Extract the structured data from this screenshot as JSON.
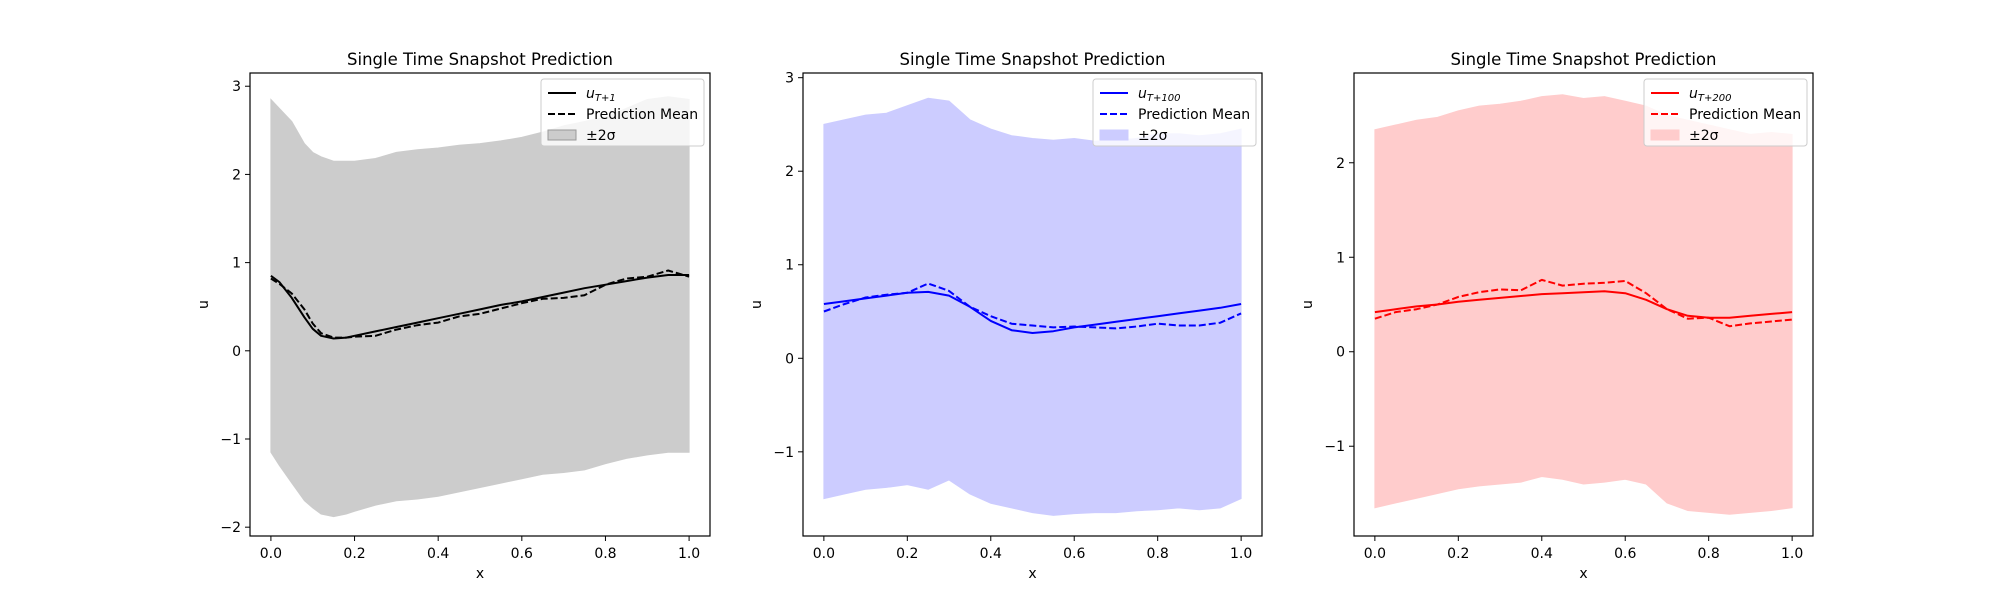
{
  "chart_data": [
    {
      "type": "line",
      "title": "Single Time Snapshot Prediction",
      "xlabel": "x",
      "ylabel": "u",
      "xlim": [
        -0.05,
        1.05
      ],
      "ylim": [
        -2.1,
        3.15
      ],
      "xticks": [
        0.0,
        0.2,
        0.4,
        0.6,
        0.8,
        1.0
      ],
      "xtick_labels": [
        "0.0",
        "0.2",
        "0.4",
        "0.6",
        "0.8",
        "1.0"
      ],
      "yticks": [
        -2,
        -1,
        0,
        1,
        2,
        3
      ],
      "ytick_labels": [
        "−2",
        "−1",
        "0",
        "1",
        "2",
        "3"
      ],
      "color": "#000000",
      "band_color": "#cccccc",
      "legend_position": "upper-right",
      "legend": [
        {
          "kind": "solid",
          "label_base": "u",
          "label_sub": "T+1"
        },
        {
          "kind": "dashed",
          "label": "Prediction Mean"
        },
        {
          "kind": "band",
          "label": "±2σ"
        }
      ],
      "x": [
        0.0,
        0.02,
        0.05,
        0.08,
        0.1,
        0.12,
        0.15,
        0.18,
        0.2,
        0.25,
        0.3,
        0.35,
        0.4,
        0.45,
        0.5,
        0.55,
        0.6,
        0.65,
        0.7,
        0.75,
        0.8,
        0.85,
        0.9,
        0.95,
        1.0
      ],
      "series": [
        {
          "name": "u_T+1",
          "style": "solid",
          "values": [
            0.85,
            0.78,
            0.6,
            0.38,
            0.25,
            0.17,
            0.14,
            0.15,
            0.17,
            0.22,
            0.27,
            0.32,
            0.37,
            0.42,
            0.47,
            0.52,
            0.56,
            0.61,
            0.66,
            0.71,
            0.75,
            0.79,
            0.83,
            0.86,
            0.86
          ]
        },
        {
          "name": "Prediction Mean",
          "style": "dashed",
          "values": [
            0.82,
            0.76,
            0.65,
            0.47,
            0.31,
            0.2,
            0.15,
            0.15,
            0.16,
            0.17,
            0.24,
            0.29,
            0.32,
            0.39,
            0.42,
            0.48,
            0.54,
            0.59,
            0.6,
            0.63,
            0.75,
            0.82,
            0.84,
            0.91,
            0.84
          ]
        }
      ],
      "band": {
        "upper": [
          2.85,
          2.75,
          2.6,
          2.35,
          2.25,
          2.2,
          2.15,
          2.15,
          2.15,
          2.18,
          2.25,
          2.28,
          2.3,
          2.33,
          2.35,
          2.38,
          2.42,
          2.48,
          2.55,
          2.6,
          2.65,
          2.75,
          2.85,
          2.88,
          2.85
        ],
        "lower": [
          -1.15,
          -1.3,
          -1.5,
          -1.7,
          -1.78,
          -1.85,
          -1.88,
          -1.85,
          -1.82,
          -1.75,
          -1.7,
          -1.68,
          -1.65,
          -1.6,
          -1.55,
          -1.5,
          -1.45,
          -1.4,
          -1.38,
          -1.35,
          -1.28,
          -1.22,
          -1.18,
          -1.15,
          -1.15
        ]
      }
    },
    {
      "type": "line",
      "title": "Single Time Snapshot Prediction",
      "xlabel": "x",
      "ylabel": "u",
      "xlim": [
        -0.05,
        1.05
      ],
      "ylim": [
        -1.9,
        3.05
      ],
      "xticks": [
        0.0,
        0.2,
        0.4,
        0.6,
        0.8,
        1.0
      ],
      "xtick_labels": [
        "0.0",
        "0.2",
        "0.4",
        "0.6",
        "0.8",
        "1.0"
      ],
      "yticks": [
        -1,
        0,
        1,
        2,
        3
      ],
      "ytick_labels": [
        "−1",
        "0",
        "1",
        "2",
        "3"
      ],
      "color": "#0000ff",
      "band_color": "#ccccff",
      "legend_position": "upper-right",
      "legend": [
        {
          "kind": "solid",
          "label_base": "u",
          "label_sub": "T+100"
        },
        {
          "kind": "dashed",
          "label": "Prediction Mean"
        },
        {
          "kind": "band",
          "label": "±2σ"
        }
      ],
      "x": [
        0.0,
        0.05,
        0.1,
        0.15,
        0.2,
        0.25,
        0.3,
        0.35,
        0.4,
        0.45,
        0.5,
        0.55,
        0.6,
        0.65,
        0.7,
        0.75,
        0.8,
        0.85,
        0.9,
        0.95,
        1.0
      ],
      "series": [
        {
          "name": "u_T+100",
          "style": "solid",
          "values": [
            0.58,
            0.61,
            0.64,
            0.67,
            0.7,
            0.71,
            0.67,
            0.55,
            0.4,
            0.3,
            0.27,
            0.29,
            0.33,
            0.36,
            0.39,
            0.42,
            0.45,
            0.48,
            0.51,
            0.54,
            0.58
          ]
        },
        {
          "name": "Prediction Mean",
          "style": "dashed",
          "values": [
            0.5,
            0.58,
            0.65,
            0.68,
            0.7,
            0.8,
            0.72,
            0.55,
            0.45,
            0.37,
            0.35,
            0.33,
            0.34,
            0.33,
            0.32,
            0.34,
            0.37,
            0.35,
            0.35,
            0.38,
            0.48
          ]
        }
      ],
      "band": {
        "upper": [
          2.5,
          2.55,
          2.6,
          2.62,
          2.7,
          2.78,
          2.75,
          2.55,
          2.45,
          2.38,
          2.35,
          2.33,
          2.35,
          2.32,
          2.33,
          2.35,
          2.4,
          2.4,
          2.38,
          2.4,
          2.45
        ],
        "lower": [
          -1.5,
          -1.45,
          -1.4,
          -1.38,
          -1.35,
          -1.4,
          -1.3,
          -1.45,
          -1.55,
          -1.6,
          -1.65,
          -1.68,
          -1.66,
          -1.65,
          -1.65,
          -1.63,
          -1.62,
          -1.6,
          -1.62,
          -1.6,
          -1.5
        ]
      }
    },
    {
      "type": "line",
      "title": "Single Time Snapshot Prediction",
      "xlabel": "x",
      "ylabel": "u",
      "xlim": [
        -0.05,
        1.05
      ],
      "ylim": [
        -1.95,
        2.95
      ],
      "xticks": [
        0.0,
        0.2,
        0.4,
        0.6,
        0.8,
        1.0
      ],
      "xtick_labels": [
        "0.0",
        "0.2",
        "0.4",
        "0.6",
        "0.8",
        "1.0"
      ],
      "yticks": [
        -1,
        0,
        1,
        2
      ],
      "ytick_labels": [
        "−1",
        "0",
        "1",
        "2"
      ],
      "color": "#ff0000",
      "band_color": "#ffcccc",
      "legend_position": "upper-right",
      "legend": [
        {
          "kind": "solid",
          "label_base": "u",
          "label_sub": "T+200"
        },
        {
          "kind": "dashed",
          "label": "Prediction Mean"
        },
        {
          "kind": "band",
          "label": "±2σ"
        }
      ],
      "x": [
        0.0,
        0.05,
        0.1,
        0.15,
        0.2,
        0.25,
        0.3,
        0.35,
        0.4,
        0.45,
        0.5,
        0.55,
        0.6,
        0.65,
        0.7,
        0.75,
        0.8,
        0.85,
        0.9,
        0.95,
        1.0
      ],
      "series": [
        {
          "name": "u_T+200",
          "style": "solid",
          "values": [
            0.42,
            0.45,
            0.48,
            0.5,
            0.53,
            0.55,
            0.57,
            0.59,
            0.61,
            0.62,
            0.63,
            0.64,
            0.62,
            0.55,
            0.45,
            0.38,
            0.36,
            0.36,
            0.38,
            0.4,
            0.42
          ]
        },
        {
          "name": "Prediction Mean",
          "style": "dashed",
          "values": [
            0.35,
            0.42,
            0.45,
            0.5,
            0.58,
            0.63,
            0.66,
            0.65,
            0.76,
            0.7,
            0.72,
            0.73,
            0.75,
            0.62,
            0.45,
            0.35,
            0.36,
            0.27,
            0.3,
            0.32,
            0.34
          ]
        }
      ],
      "band": {
        "upper": [
          2.35,
          2.4,
          2.45,
          2.48,
          2.55,
          2.6,
          2.62,
          2.65,
          2.7,
          2.72,
          2.68,
          2.7,
          2.65,
          2.6,
          2.5,
          2.45,
          2.4,
          2.35,
          2.3,
          2.32,
          2.3
        ],
        "lower": [
          -1.65,
          -1.6,
          -1.55,
          -1.5,
          -1.45,
          -1.42,
          -1.4,
          -1.38,
          -1.32,
          -1.35,
          -1.4,
          -1.38,
          -1.35,
          -1.4,
          -1.6,
          -1.68,
          -1.7,
          -1.72,
          -1.7,
          -1.68,
          -1.65
        ]
      }
    }
  ]
}
